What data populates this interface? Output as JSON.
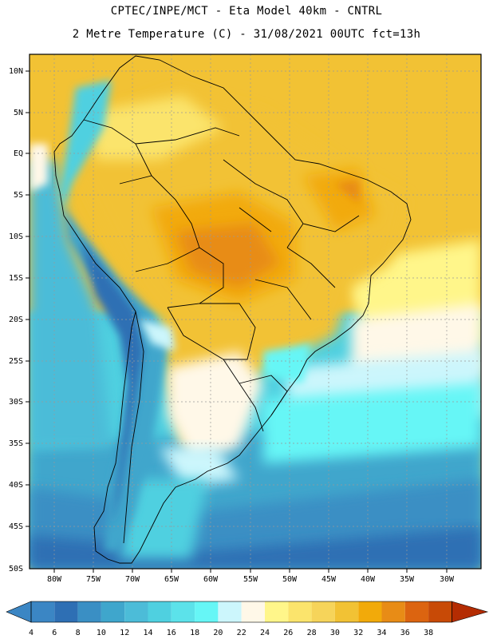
{
  "header": {
    "line1": "CPTEC/INPE/MCT  -  Eta Model 40km  -  CNTRL",
    "line2": "2 Metre Temperature (C) - 31/08/2021 00UTC fct=13h"
  },
  "map": {
    "lat_labels": [
      "10N",
      "5N",
      "EQ",
      "5S",
      "10S",
      "15S",
      "20S",
      "25S",
      "30S",
      "35S",
      "40S",
      "45S",
      "50S"
    ],
    "lon_labels": [
      "80W",
      "75W",
      "70W",
      "65W",
      "60W",
      "55W",
      "50W",
      "45W",
      "40W",
      "35W",
      "30W"
    ]
  },
  "colorbar": {
    "labels": [
      "4",
      "6",
      "8",
      "10",
      "12",
      "14",
      "16",
      "18",
      "20",
      "22",
      "24",
      "26",
      "28",
      "30",
      "32",
      "34",
      "36",
      "38"
    ],
    "colors": [
      "#3b86c4",
      "#2e6fb4",
      "#3a8fc4",
      "#3fa6cc",
      "#4cbcd8",
      "#4fd0e0",
      "#5ce2ea",
      "#66f6f6",
      "#ccf6fc",
      "#fff8e8",
      "#fff68a",
      "#fbe46c",
      "#f6d45a",
      "#f2c234",
      "#f2aa0a",
      "#e88c16",
      "#dc6410",
      "#c84a06",
      "#b42c02"
    ]
  }
}
